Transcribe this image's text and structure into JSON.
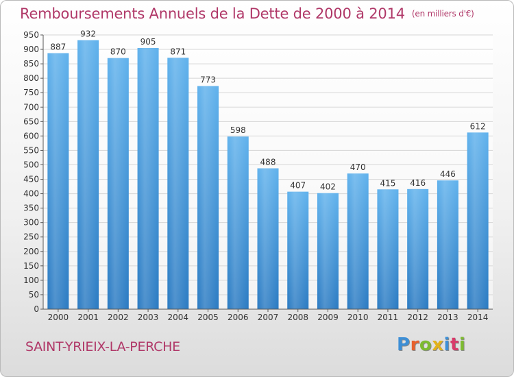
{
  "title": "Remboursements Annuels de la Dette de 2000 à 2014",
  "subtitle": "(en milliers d'€)",
  "city": "SAINT-YRIEIX-LA-PERCHE",
  "logo": {
    "letters": [
      "P",
      "r",
      "o",
      "x",
      "i",
      "t",
      "i"
    ],
    "colors": [
      "#3d8fd6",
      "#e85f2c",
      "#7dbb2f",
      "#e2b21c",
      "#3d8fd6",
      "#d83a6a",
      "#7dbb2f"
    ]
  },
  "colors": {
    "bar_top": "#5fb1ec",
    "bar_bottom": "#2a7ac2",
    "title": "#b03868",
    "axis": "#555555",
    "grid": "#d6d6d6"
  },
  "chart_data": {
    "type": "bar",
    "categories": [
      "2000",
      "2001",
      "2002",
      "2003",
      "2004",
      "2005",
      "2006",
      "2007",
      "2008",
      "2009",
      "2010",
      "2011",
      "2012",
      "2013",
      "2014"
    ],
    "values": [
      887,
      932,
      870,
      905,
      871,
      773,
      598,
      488,
      407,
      402,
      470,
      415,
      416,
      446,
      612
    ],
    "ylim": [
      0,
      950
    ],
    "ytick_step": 50,
    "grid": true,
    "xlabel": "",
    "ylabel": ""
  }
}
